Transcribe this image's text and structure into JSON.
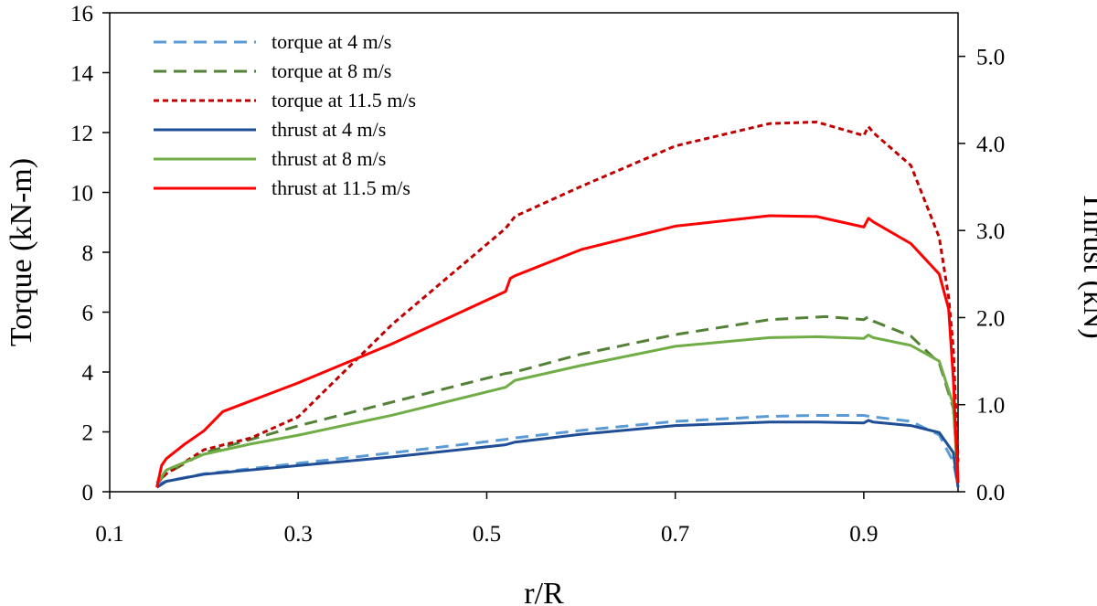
{
  "chart_data": {
    "type": "line",
    "xlabel": "r/R",
    "ylabel_left": "Torque (kN-m)",
    "ylabel_right": "Thrust (kN)",
    "xlim": [
      0.1,
      1.0
    ],
    "ylim_left": [
      0,
      16
    ],
    "ylim_right": [
      0,
      5.5
    ],
    "x_ticks": [
      "0.1",
      "0.3",
      "0.5",
      "0.7",
      "0.9"
    ],
    "x_tick_values": [
      0.1,
      0.3,
      0.5,
      0.7,
      0.9
    ],
    "y_left_ticks": [
      "0",
      "2",
      "4",
      "6",
      "8",
      "10",
      "12",
      "14",
      "16"
    ],
    "y_left_tick_values": [
      0,
      2,
      4,
      6,
      8,
      10,
      12,
      14,
      16
    ],
    "y_right_ticks": [
      "0.0",
      "1.0",
      "2.0",
      "3.0",
      "4.0",
      "5.0"
    ],
    "y_right_tick_values": [
      0,
      1,
      2,
      3,
      4,
      5
    ],
    "grid": false,
    "legend_position": "top-left",
    "series": [
      {
        "name": "torque at 4 m/s",
        "axis": "left",
        "color": "#5b9bd5",
        "dash": "long",
        "x": [
          0.15,
          0.16,
          0.2,
          0.3,
          0.4,
          0.52,
          0.53,
          0.6,
          0.7,
          0.8,
          0.85,
          0.9,
          0.91,
          0.95,
          0.98,
          0.995,
          1.0
        ],
        "y": [
          0.25,
          0.35,
          0.6,
          0.95,
          1.3,
          1.75,
          1.8,
          2.05,
          2.35,
          2.52,
          2.55,
          2.55,
          2.5,
          2.35,
          1.9,
          1.0,
          0.2
        ]
      },
      {
        "name": "torque at 8 m/s",
        "axis": "left",
        "color": "#538135",
        "dash": "long",
        "x": [
          0.15,
          0.16,
          0.2,
          0.25,
          0.3,
          0.4,
          0.52,
          0.53,
          0.6,
          0.7,
          0.8,
          0.86,
          0.9,
          0.905,
          0.91,
          0.95,
          0.98,
          0.995,
          1.0
        ],
        "y": [
          0.3,
          0.6,
          1.3,
          1.75,
          2.2,
          3.0,
          3.95,
          4.0,
          4.6,
          5.25,
          5.75,
          5.85,
          5.75,
          5.85,
          5.7,
          5.2,
          4.3,
          2.8,
          0.5
        ]
      },
      {
        "name": "torque at 11.5 m/s",
        "axis": "left",
        "color": "#c00000",
        "dash": "short",
        "x": [
          0.15,
          0.16,
          0.18,
          0.2,
          0.25,
          0.3,
          0.4,
          0.52,
          0.53,
          0.6,
          0.7,
          0.8,
          0.85,
          0.9,
          0.905,
          0.91,
          0.95,
          0.98,
          0.99,
          0.995,
          1.0
        ],
        "y": [
          0.3,
          0.6,
          1.0,
          1.4,
          1.8,
          2.5,
          5.6,
          8.8,
          9.2,
          10.2,
          11.55,
          12.3,
          12.35,
          11.9,
          12.2,
          12.0,
          10.9,
          8.5,
          6.5,
          4.8,
          1.0
        ]
      },
      {
        "name": "thrust at 4 m/s",
        "axis": "right",
        "color": "#1f4e96",
        "dash": "solid",
        "x": [
          0.15,
          0.16,
          0.2,
          0.3,
          0.4,
          0.52,
          0.53,
          0.6,
          0.7,
          0.8,
          0.85,
          0.9,
          0.905,
          0.91,
          0.95,
          0.98,
          0.995,
          1.0
        ],
        "y": [
          0.05,
          0.12,
          0.2,
          0.3,
          0.4,
          0.54,
          0.57,
          0.66,
          0.76,
          0.8,
          0.8,
          0.79,
          0.82,
          0.8,
          0.76,
          0.68,
          0.45,
          0.05
        ]
      },
      {
        "name": "thrust at 8 m/s",
        "axis": "right",
        "color": "#70ad47",
        "dash": "solid",
        "x": [
          0.15,
          0.16,
          0.2,
          0.25,
          0.3,
          0.4,
          0.52,
          0.53,
          0.6,
          0.7,
          0.8,
          0.85,
          0.9,
          0.905,
          0.91,
          0.95,
          0.98,
          0.995,
          1.0
        ],
        "y": [
          0.1,
          0.25,
          0.43,
          0.55,
          0.65,
          0.88,
          1.2,
          1.28,
          1.45,
          1.67,
          1.77,
          1.78,
          1.76,
          1.8,
          1.77,
          1.68,
          1.5,
          1.0,
          0.1
        ]
      },
      {
        "name": "thrust at 11.5 m/s",
        "axis": "right",
        "color": "#ff0000",
        "dash": "solid",
        "x": [
          0.15,
          0.155,
          0.16,
          0.18,
          0.2,
          0.22,
          0.3,
          0.4,
          0.52,
          0.525,
          0.53,
          0.6,
          0.7,
          0.8,
          0.85,
          0.9,
          0.905,
          0.91,
          0.95,
          0.98,
          0.99,
          0.995,
          1.0
        ],
        "y": [
          0.05,
          0.3,
          0.38,
          0.55,
          0.7,
          0.92,
          1.25,
          1.7,
          2.3,
          2.45,
          2.48,
          2.78,
          3.05,
          3.17,
          3.16,
          3.04,
          3.14,
          3.1,
          2.85,
          2.5,
          2.1,
          1.3,
          0.1
        ]
      }
    ]
  }
}
